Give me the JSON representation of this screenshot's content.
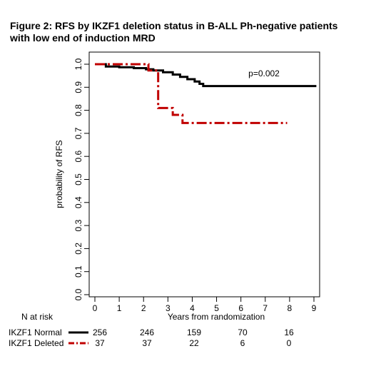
{
  "title_line1": "Figure 2: RFS by IKZF1 deletion status in B-ALL Ph-negative patients",
  "title_line2": "with low end of induction MRD",
  "chart_data": {
    "type": "line",
    "subtype": "kaplan-meier step curve",
    "xlabel": "Years from randomization",
    "ylabel": "probability of RFS",
    "xlim": [
      0,
      9.4
    ],
    "ylim": [
      0,
      1.0
    ],
    "xticks": [
      0,
      1,
      2,
      3,
      4,
      5,
      6,
      7,
      8,
      9
    ],
    "yticks": [
      0.0,
      0.1,
      0.2,
      0.3,
      0.4,
      0.5,
      0.6,
      0.7,
      0.8,
      0.9,
      1.0
    ],
    "ytick_labels": [
      "0.0",
      "0.1",
      "0.2",
      "0.3",
      "0.4",
      "0.5",
      "0.6",
      "0.7",
      "0.8",
      "0.9",
      "1.0"
    ],
    "grid": false,
    "annotation": "p=0.002",
    "series": [
      {
        "name": "IKZF1 Normal",
        "color": "#000000",
        "line_style": "solid",
        "x": [
          0,
          0.45,
          1.0,
          1.6,
          2.1,
          2.4,
          2.8,
          3.2,
          3.5,
          3.8,
          4.1,
          4.3,
          4.45,
          9.1
        ],
        "y": [
          1.0,
          0.99,
          0.987,
          0.983,
          0.978,
          0.973,
          0.965,
          0.955,
          0.945,
          0.935,
          0.925,
          0.915,
          0.905,
          0.905
        ]
      },
      {
        "name": "IKZF1 Deleted",
        "color": "#c00000",
        "line_style": "dashdot",
        "x": [
          0,
          2.0,
          2.2,
          2.5,
          2.6,
          3.2,
          3.6,
          7.9
        ],
        "y": [
          1.0,
          1.0,
          0.973,
          0.973,
          0.81,
          0.78,
          0.745,
          0.745
        ]
      }
    ],
    "risk_table": {
      "header": "N at risk",
      "rows": [
        {
          "label": "IKZF1 Normal",
          "values": [
            "256",
            "246",
            "159",
            "70",
            "16"
          ]
        },
        {
          "label": "IKZF1 Deleted",
          "values": [
            "37",
            "37",
            "22",
            "6",
            "0"
          ]
        }
      ]
    }
  }
}
